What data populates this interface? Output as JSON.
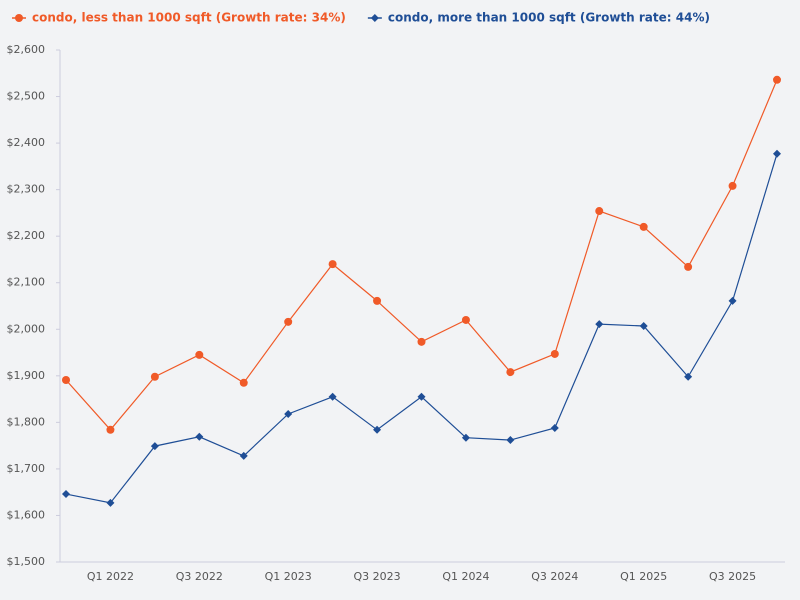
{
  "chart_data": {
    "type": "line",
    "categories": [
      null,
      "Q1 2022",
      null,
      "Q3 2022",
      null,
      "Q1 2023",
      null,
      "Q3 2023",
      null,
      "Q1 2024",
      null,
      "Q3 2024",
      null,
      "Q1 2025",
      null,
      "Q3 2025",
      null
    ],
    "series": [
      {
        "name": "condo, less than 1000 sqft (Growth rate: 34%)",
        "color": "#f05a28",
        "marker": "circle",
        "values": [
          1891,
          1784,
          1898,
          1945,
          1885,
          2016,
          2140,
          2061,
          1973,
          2020,
          1908,
          1947,
          2254,
          2220,
          2134,
          2308,
          2536
        ]
      },
      {
        "name": "condo, more than 1000 sqft (Growth rate: 44%)",
        "color": "#1f4e96",
        "marker": "diamond",
        "values": [
          1646,
          1627,
          1749,
          1769,
          1728,
          1818,
          1855,
          1784,
          1855,
          1767,
          1762,
          1788,
          2011,
          2007,
          1898,
          2061,
          2377
        ]
      }
    ],
    "ylim": [
      1500,
      2600
    ],
    "yticks": [
      {
        "value": 1500,
        "label": "$1,500"
      },
      {
        "value": 1600,
        "label": "$1,600"
      },
      {
        "value": 1700,
        "label": "$1,700"
      },
      {
        "value": 1800,
        "label": "$1,800"
      },
      {
        "value": 1900,
        "label": "$1,900"
      },
      {
        "value": 2000,
        "label": "$2,000"
      },
      {
        "value": 2100,
        "label": "$2,100"
      },
      {
        "value": 2200,
        "label": "$2,200"
      },
      {
        "value": 2300,
        "label": "$2,300"
      },
      {
        "value": 2400,
        "label": "$2,400"
      },
      {
        "value": 2500,
        "label": "$2,500"
      },
      {
        "value": 2600,
        "label": "$2,600"
      }
    ],
    "grid": false,
    "legend": "top"
  }
}
